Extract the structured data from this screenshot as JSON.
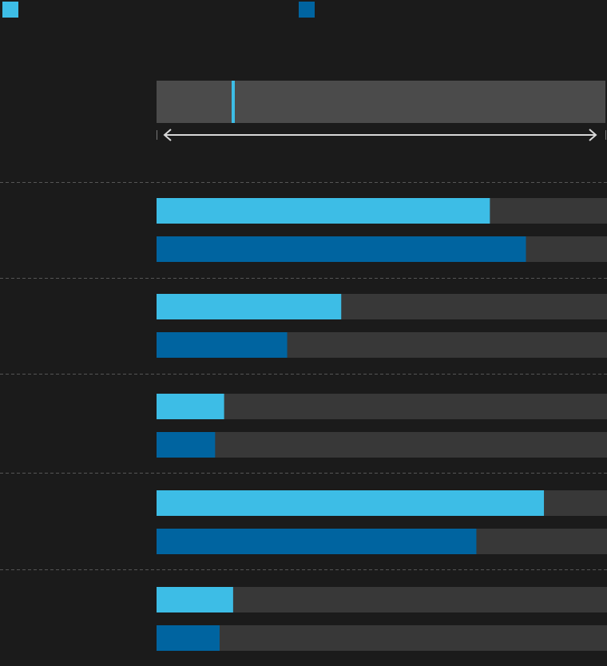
{
  "chart_data": {
    "type": "bar",
    "orientation": "horizontal",
    "title": "",
    "xlabel": "",
    "ylabel": "",
    "categories": [
      "",
      "",
      "",
      "",
      ""
    ],
    "xlim": [
      0,
      100
    ],
    "series": [
      {
        "color": "#3dbde6",
        "values": [
          74,
          41,
          15,
          86,
          17
        ]
      },
      {
        "color": "#0064a0",
        "values": [
          82,
          29,
          13,
          71,
          14
        ]
      }
    ],
    "legend": {
      "placement": "top-left"
    },
    "range_overview": {
      "marker_value": 17
    },
    "grid": false,
    "track_color": "#383838",
    "separator_color": "#555555"
  }
}
